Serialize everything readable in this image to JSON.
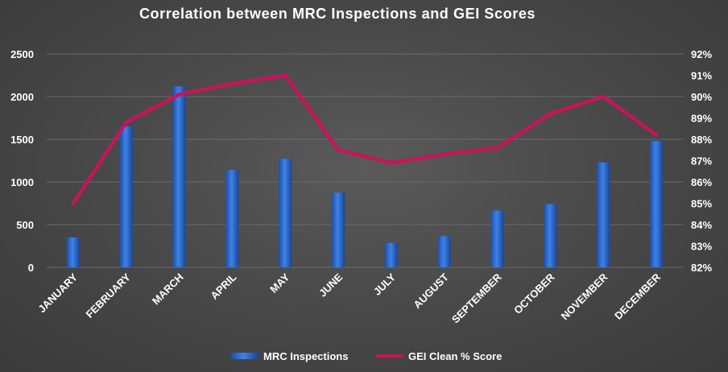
{
  "chart_data": {
    "type": "bar",
    "title": "Correlation between MRC Inspections and GEI Scores",
    "categories": [
      "JANUARY",
      "FEBRUARY",
      "MARCH",
      "APRIL",
      "MAY",
      "JUNE",
      "JULY",
      "AUGUST",
      "SEPTEMBER",
      "OCTOBER",
      "NOVEMBER",
      "DECEMBER"
    ],
    "series": [
      {
        "name": "MRC Inspections",
        "type": "bar",
        "axis": "left",
        "color": "#2f6fd6",
        "values": [
          350,
          1650,
          2120,
          1140,
          1270,
          875,
          285,
          365,
          665,
          740,
          1230,
          1480
        ]
      },
      {
        "name": "GEI Clean % Score",
        "type": "line",
        "axis": "right",
        "color": "#c8145a",
        "values": [
          85.0,
          88.8,
          90.1,
          90.6,
          91.0,
          87.5,
          86.9,
          87.3,
          87.6,
          89.2,
          90.0,
          88.2
        ]
      }
    ],
    "y_left": {
      "lim": [
        0,
        2500
      ],
      "ticks": [
        "0",
        "500",
        "1000",
        "1500",
        "2000",
        "2500"
      ],
      "tick_values": [
        0,
        500,
        1000,
        1500,
        2000,
        2500
      ]
    },
    "y_right": {
      "lim": [
        82,
        92
      ],
      "ticks": [
        "82%",
        "83%",
        "84%",
        "85%",
        "86%",
        "87%",
        "88%",
        "89%",
        "90%",
        "91%",
        "92%"
      ],
      "tick_values": [
        82,
        83,
        84,
        85,
        86,
        87,
        88,
        89,
        90,
        91,
        92
      ]
    },
    "grid": true,
    "legend": {
      "placement": "bottom"
    },
    "background_color": "#4a4a4a",
    "grid_color": "#6a6a6a",
    "text_color": "#ffffff"
  }
}
